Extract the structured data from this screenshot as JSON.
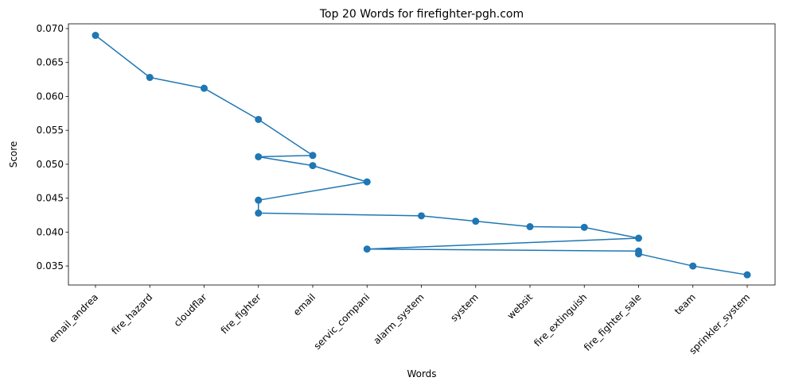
{
  "chart_data": {
    "type": "line",
    "title": "Top 20 Words for firefighter-pgh.com",
    "xlabel": "Words",
    "ylabel": "Score",
    "categories": [
      "email_andrea",
      "fire_hazard",
      "cloudflar",
      "fire_fighter",
      "email",
      "servic_compani",
      "alarm_system",
      "system",
      "websit",
      "fire_extinguish",
      "fire_fighter_sale",
      "team",
      "sprinkler_system"
    ],
    "ylim": [
      0.0322,
      0.0707
    ],
    "yticks": [
      0.035,
      0.04,
      0.045,
      0.05,
      0.055,
      0.06,
      0.065,
      0.07
    ],
    "ytick_labels": [
      "0.035",
      "0.040",
      "0.045",
      "0.050",
      "0.055",
      "0.060",
      "0.065",
      "0.070"
    ],
    "grid": false,
    "legend": "none",
    "series": [
      {
        "x": [
          "email_andrea",
          "fire_hazard",
          "cloudflar",
          "fire_fighter",
          "email",
          "fire_fighter",
          "email",
          "servic_compani",
          "fire_fighter",
          "fire_fighter",
          "alarm_system",
          "system",
          "websit",
          "fire_extinguish",
          "fire_fighter_sale",
          "servic_compani",
          "fire_fighter_sale",
          "fire_fighter_sale",
          "team",
          "sprinkler_system"
        ],
        "values": [
          0.069,
          0.0628,
          0.0612,
          0.0566,
          0.0513,
          0.0511,
          0.0498,
          0.0474,
          0.0447,
          0.0428,
          0.0424,
          0.0416,
          0.0408,
          0.0407,
          0.0391,
          0.0375,
          0.0372,
          0.0368,
          0.035,
          0.0337
        ],
        "color": "#1f77b4",
        "marker": "circle"
      }
    ]
  }
}
